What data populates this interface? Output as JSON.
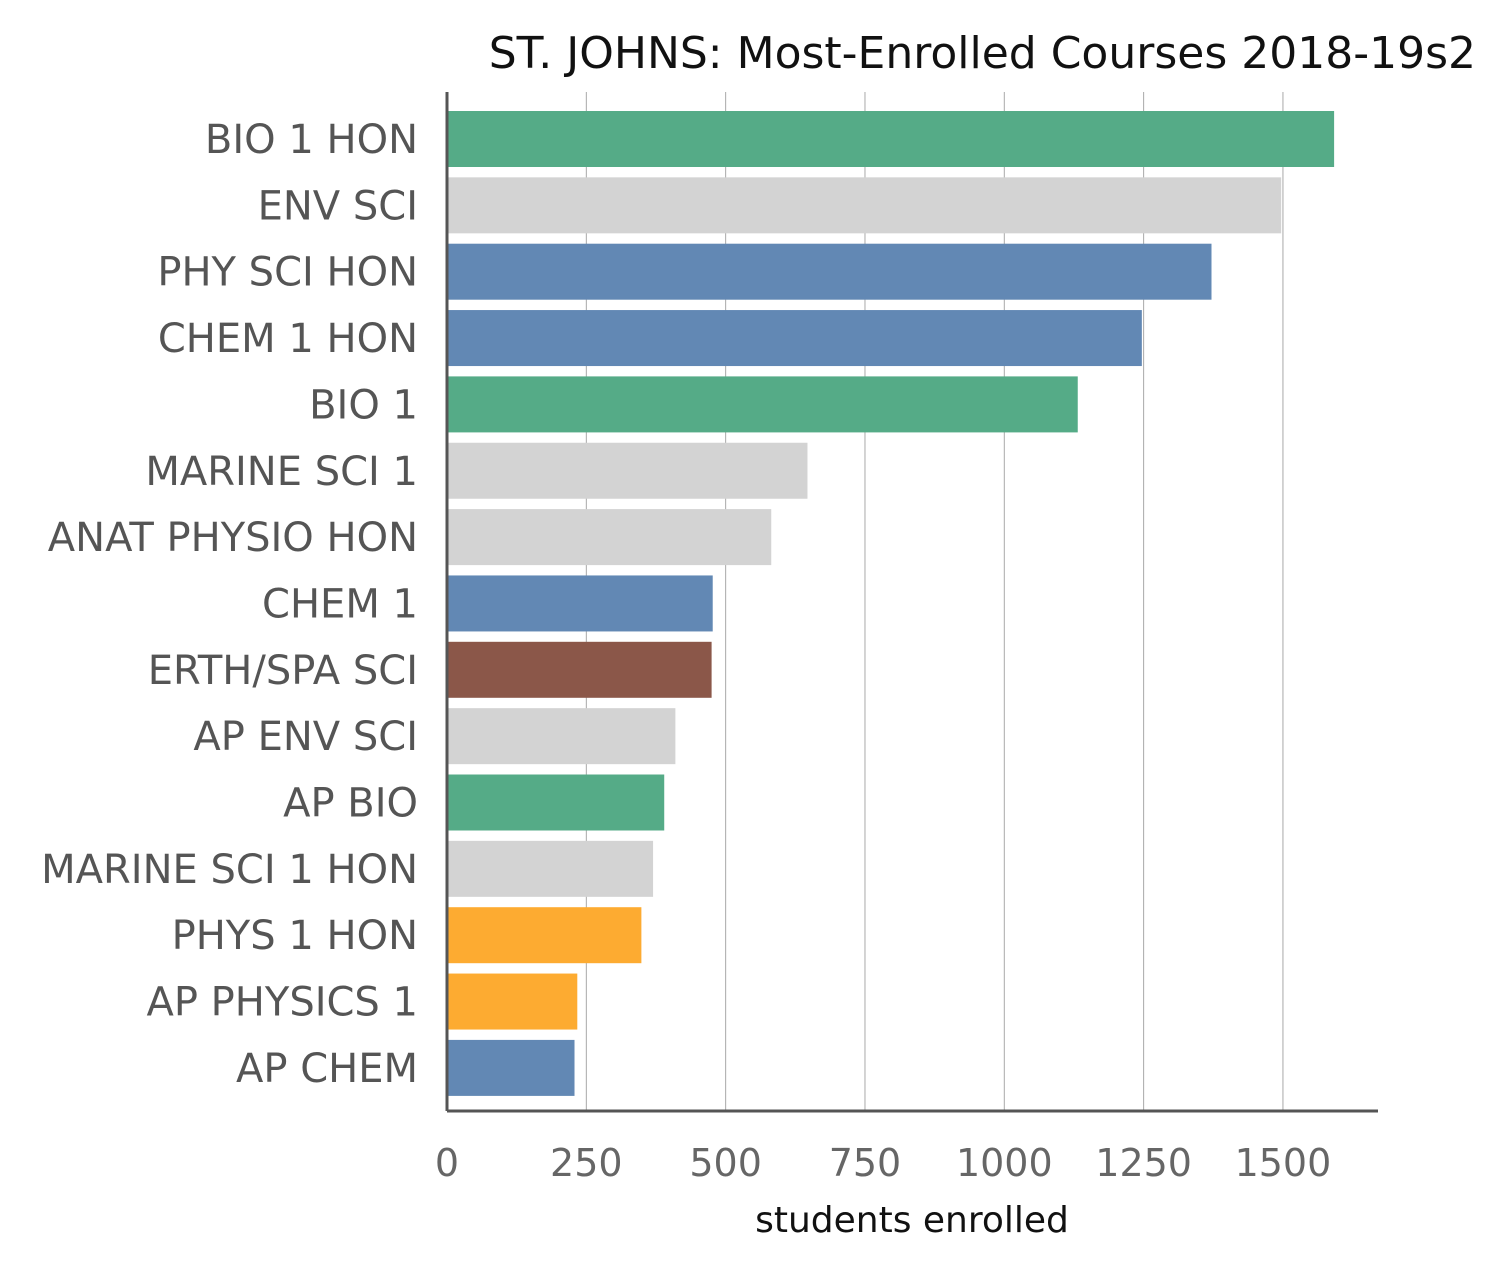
{
  "chart_data": {
    "type": "bar",
    "orientation": "horizontal",
    "title": "ST. JOHNS: Most-Enrolled Courses 2018-19s2",
    "xlabel": "students enrolled",
    "ylabel": "",
    "xlim": [
      0,
      1680
    ],
    "xticks": [
      0,
      250,
      500,
      750,
      1000,
      1250,
      1500
    ],
    "grid": "vertical",
    "categories": [
      "BIO 1 HON",
      "ENV SCI",
      "PHY SCI HON",
      "CHEM 1 HON",
      "BIO 1",
      "MARINE SCI 1",
      "ANAT PHYSIO HON",
      "CHEM 1",
      "ERTH/SPA SCI",
      "AP ENV SCI",
      "AP BIO",
      "MARINE SCI 1 HON",
      "PHYS 1 HON",
      "AP PHYSICS 1",
      "AP CHEM"
    ],
    "values": [
      1590,
      1495,
      1370,
      1245,
      1130,
      645,
      580,
      475,
      473,
      408,
      388,
      368,
      347,
      232,
      227
    ],
    "colors": [
      "#55ab87",
      "#d3d3d3",
      "#6288b4",
      "#6288b4",
      "#55ab87",
      "#d3d3d3",
      "#d3d3d3",
      "#6288b4",
      "#8b5749",
      "#d3d3d3",
      "#55ab87",
      "#d3d3d3",
      "#fdab31",
      "#fdab31",
      "#6288b4"
    ]
  }
}
